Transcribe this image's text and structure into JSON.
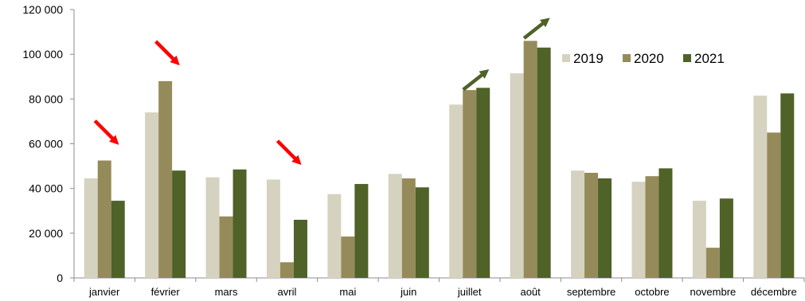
{
  "chart_data": {
    "type": "bar",
    "categories": [
      "janvier",
      "février",
      "mars",
      "avril",
      "mai",
      "juin",
      "juillet",
      "août",
      "septembre",
      "octobre",
      "novembre",
      "décembre"
    ],
    "series": [
      {
        "name": "2019",
        "color": "#d6d2c0",
        "values": [
          44500,
          74000,
          45000,
          44000,
          37500,
          46500,
          77500,
          91500,
          48000,
          43000,
          34500,
          81500
        ]
      },
      {
        "name": "2020",
        "color": "#958b5a",
        "values": [
          52500,
          88000,
          27500,
          7000,
          18500,
          44500,
          84000,
          106000,
          47000,
          45500,
          13500,
          65000
        ]
      },
      {
        "name": "2021",
        "color": "#4f6228",
        "values": [
          34500,
          48000,
          48500,
          26000,
          42000,
          40500,
          85000,
          103000,
          44500,
          49000,
          35500,
          82500
        ]
      }
    ],
    "y_ticks": [
      "0",
      "20 000",
      "40 000",
      "60 000",
      "80 000",
      "100 000",
      "120 000"
    ],
    "ylim": [
      0,
      120000
    ],
    "title": "",
    "xlabel": "",
    "ylabel": "",
    "legend_position": "top-right",
    "grid": false,
    "annotations": [
      {
        "type": "arrow-down",
        "category": "janvier",
        "value": 61000,
        "color": "#ff0000"
      },
      {
        "type": "arrow-down",
        "category": "février",
        "value": 96500,
        "color": "#ff0000"
      },
      {
        "type": "arrow-down",
        "category": "avril",
        "value": 52000,
        "color": "#ff0000"
      },
      {
        "type": "arrow-up",
        "category": "juillet",
        "value": 92000,
        "color": "#4f6228"
      },
      {
        "type": "arrow-up",
        "category": "août",
        "value": 115000,
        "color": "#4f6228"
      }
    ]
  }
}
